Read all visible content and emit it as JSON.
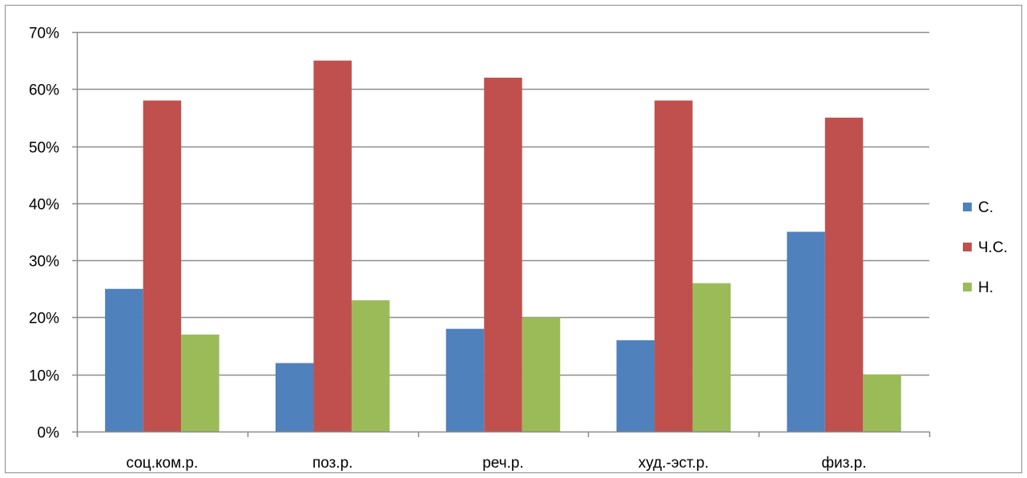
{
  "chart_data": {
    "type": "bar",
    "title": "",
    "xlabel": "",
    "ylabel": "",
    "categories": [
      "соц.ком.р.",
      "поз.р.",
      "реч.р.",
      "худ.-эст.р.",
      "физ.р."
    ],
    "series": [
      {
        "name": "С.",
        "color": "#4f81bd",
        "values": [
          25,
          12,
          18,
          16,
          35
        ]
      },
      {
        "name": "Ч.С.",
        "color": "#c0504d",
        "values": [
          58,
          65,
          62,
          58,
          55
        ]
      },
      {
        "name": "Н.",
        "color": "#9bbb59",
        "values": [
          17,
          23,
          20,
          26,
          10
        ]
      }
    ],
    "ylim": [
      0,
      70
    ],
    "y_ticks": [
      0,
      10,
      20,
      30,
      40,
      50,
      60,
      70
    ],
    "y_tick_labels": [
      "0%",
      "10%",
      "20%",
      "30%",
      "40%",
      "50%",
      "60%",
      "70%"
    ],
    "grid": true,
    "legend_position": "right"
  }
}
